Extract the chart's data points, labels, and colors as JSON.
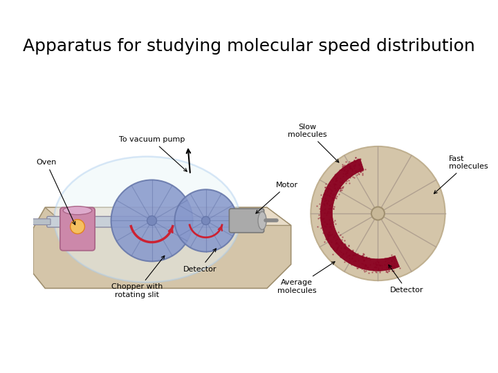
{
  "title": "Apparatus for studying molecular speed distribution",
  "title_fontsize": 18,
  "labels": {
    "to_vacuum_pump": "To vacuum pump",
    "motor": "Motor",
    "oven": "Oven",
    "detector": "Detector",
    "chopper": "Chopper with\nrotating slit",
    "slow_molecules": "Slow\nmolecules",
    "fast_molecules": "Fast\nmolecules",
    "average_molecules": "Average\nmolecules",
    "detector2": "Detector"
  },
  "colors": {
    "bg_color": "#ffffff",
    "disk_blue": "#8899cc",
    "disk_light": "#aabbdd",
    "disk_dark": "#6677aa",
    "oven_pink": "#cc88aa",
    "oven_light": "#ddaacc",
    "base_beige": "#d4c5a9",
    "base_light": "#e8dcc8",
    "glass_fill": "#ddeeff",
    "glass_stroke": "#aaccee",
    "red_arc": "#8b0020",
    "wheel_bg": "#d4c5a9",
    "wheel_line": "#b0a090",
    "motor_gray": "#aaaaaa",
    "arrow_color": "#000000",
    "label_color": "#000000"
  }
}
